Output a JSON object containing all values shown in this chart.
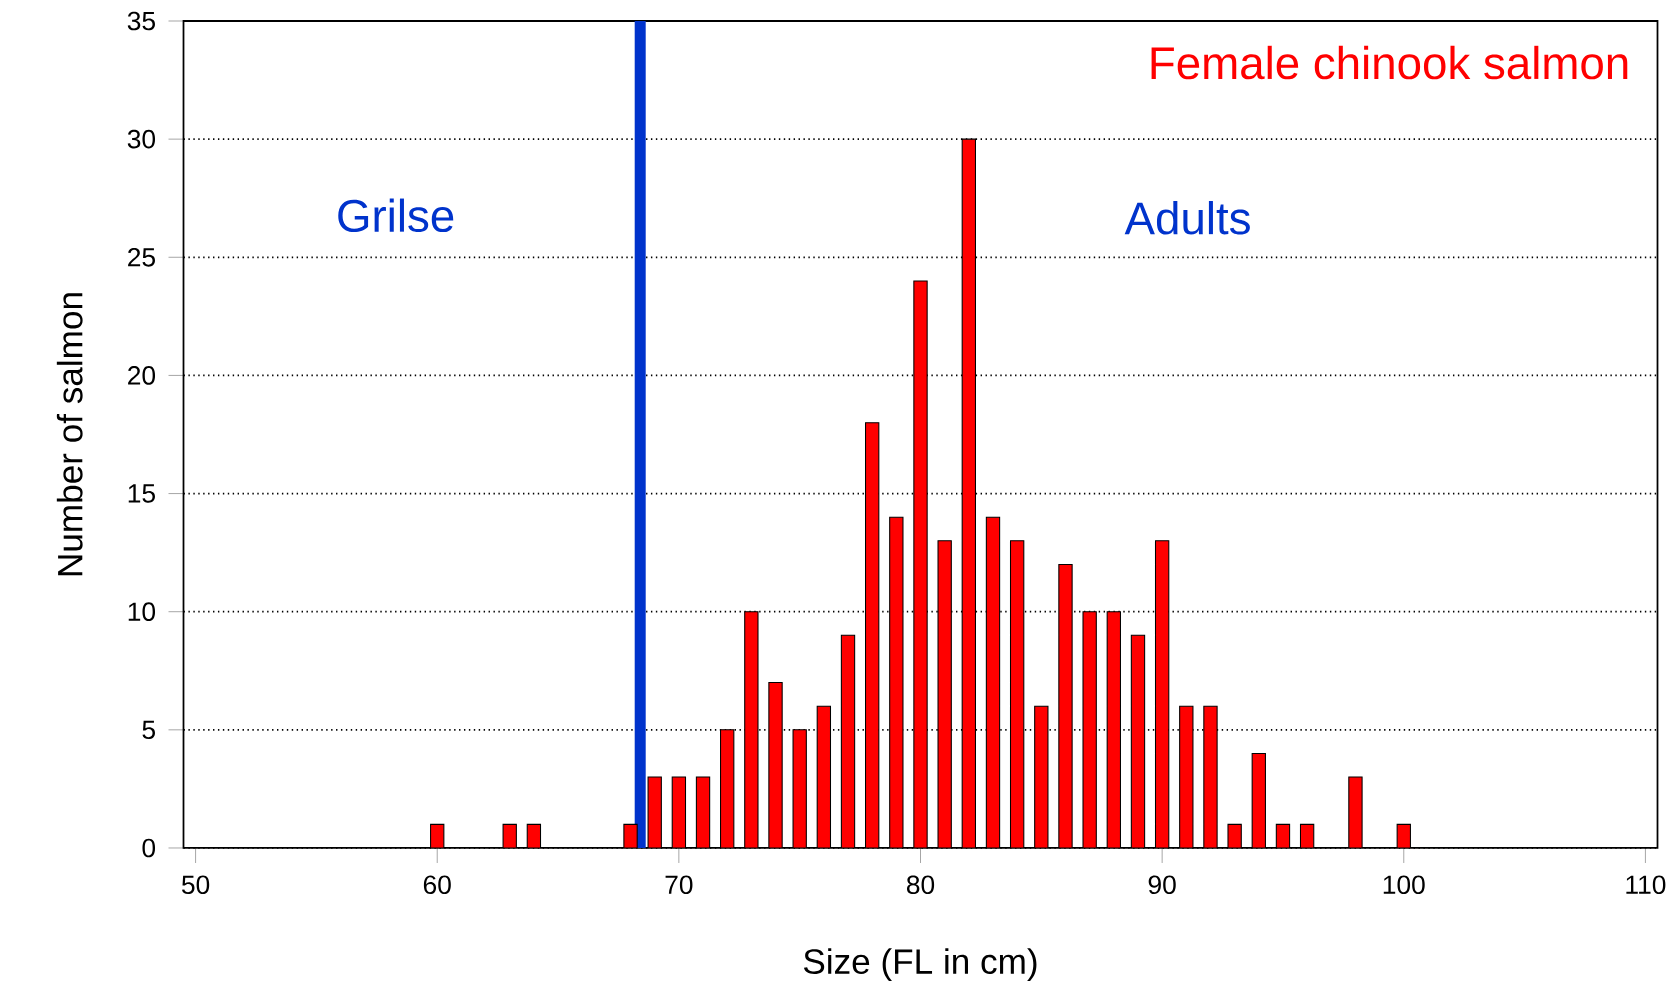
{
  "chart_data": {
    "type": "bar",
    "title": "Female chinook salmon",
    "xlabel": "Size  (FL in cm)",
    "ylabel": "Number of salmon",
    "x": [
      60,
      63,
      64,
      68,
      69,
      70,
      71,
      72,
      73,
      74,
      75,
      76,
      77,
      78,
      79,
      80,
      81,
      82,
      83,
      84,
      85,
      86,
      87,
      88,
      89,
      90,
      91,
      92,
      93,
      94,
      95,
      96,
      98,
      100
    ],
    "values": [
      1,
      1,
      1,
      1,
      3,
      3,
      3,
      5,
      10,
      7,
      5,
      6,
      9,
      18,
      14,
      24,
      13,
      30,
      14,
      13,
      6,
      12,
      10,
      10,
      9,
      13,
      6,
      6,
      1,
      4,
      1,
      1,
      3,
      1
    ],
    "color": "#ff0000",
    "xlim": [
      49.5,
      110.5
    ],
    "xticks": [
      50,
      60,
      70,
      80,
      90,
      100,
      110
    ],
    "ylim": [
      0,
      35
    ],
    "yticks": [
      0,
      5,
      10,
      15,
      20,
      25,
      30,
      35
    ],
    "grid": "y",
    "ref_lines": [
      {
        "axis": "x",
        "value": 68.4,
        "color": "#0033cc"
      }
    ],
    "annotations": [
      "Grilse",
      "Adults"
    ]
  }
}
